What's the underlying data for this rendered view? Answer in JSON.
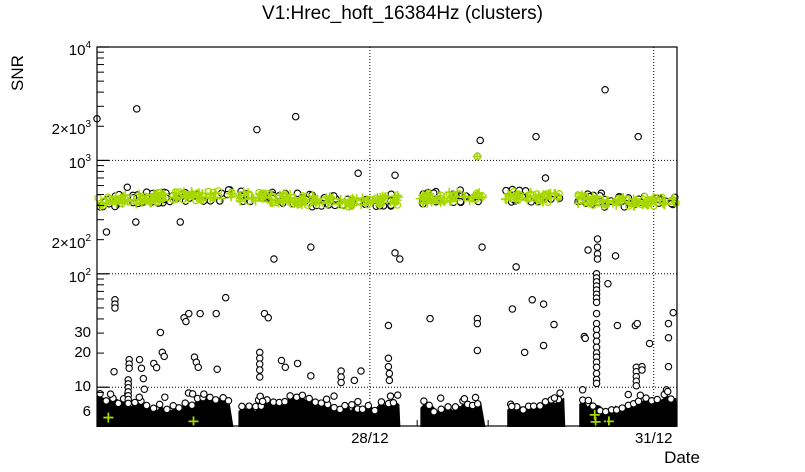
{
  "chart_data": {
    "type": "scatter",
    "title": "V1:Hrec_hoft_16384Hz (clusters)",
    "xlabel": "Date",
    "ylabel": "SNR",
    "y_scale": "log",
    "y_range": [
      4.55,
      10000
    ],
    "x_range_days": [
      0,
      6.13
    ],
    "grid": "dotted-at-decades-and-date-ticks",
    "legend": "none",
    "x_ticks": [
      {
        "day": 2.884,
        "label": "28/12"
      },
      {
        "day": 5.884,
        "label": "31/12"
      }
    ],
    "x_day_tick_step": 1,
    "x_subtick_step": 0.25,
    "y_tick_labels": [
      {
        "v": 10000,
        "mant": "10",
        "exp": "4"
      },
      {
        "v": 2000,
        "mant": "2×10",
        "exp": "3"
      },
      {
        "v": 1000,
        "mant": "10",
        "exp": "3"
      },
      {
        "v": 200,
        "mant": "2×10",
        "exp": "2"
      },
      {
        "v": 100,
        "mant": "10",
        "exp": "2"
      },
      {
        "v": 30,
        "mant": "30",
        "exp": ""
      },
      {
        "v": 20,
        "mant": "20",
        "exp": ""
      },
      {
        "v": 10,
        "mant": "10",
        "exp": ""
      },
      {
        "v": 6,
        "mant": "6",
        "exp": ""
      }
    ],
    "y_major_grid_values": [
      10,
      100,
      1000
    ],
    "colors": {
      "marker": "#000000",
      "cluster_green": "#a6d800",
      "background": "#ffffff",
      "frame": "#000000"
    },
    "cluster_band": {
      "snr_center": 460,
      "snr_low": 400,
      "snr_high": 530,
      "segments_days": [
        [
          0,
          1.436
        ],
        [
          1.5,
          3.19
        ],
        [
          3.412,
          4.099
        ],
        [
          4.31,
          4.891
        ],
        [
          5.081,
          6.13
        ]
      ]
    },
    "bottom_band": {
      "snr_low": 4.6,
      "snr_typical_top": 9.5,
      "segments_days": [
        [
          0,
          1.436
        ],
        [
          1.5,
          3.201
        ],
        [
          3.423,
          4.099
        ],
        [
          4.341,
          4.944
        ],
        [
          5.102,
          6.13
        ]
      ]
    },
    "points_black": [
      [
        0.42,
        2850
      ],
      [
        0.0,
        2330
      ],
      [
        1.69,
        1870
      ],
      [
        2.1,
        2430
      ],
      [
        2.76,
        770
      ],
      [
        5.37,
        4200
      ],
      [
        4.05,
        1500
      ],
      [
        4.64,
        1620
      ],
      [
        5.72,
        1620
      ],
      [
        3.15,
        740
      ],
      [
        4.74,
        700
      ],
      [
        0.32,
        580
      ],
      [
        0.89,
        503
      ],
      [
        0.41,
        286
      ],
      [
        0.88,
        286
      ],
      [
        0.1,
        234
      ],
      [
        1.87,
        135
      ],
      [
        2.26,
        172
      ],
      [
        4.07,
        172
      ],
      [
        4.43,
        115
      ],
      [
        5.19,
        162
      ],
      [
        5.48,
        144
      ],
      [
        3.15,
        153
      ],
      [
        3.2,
        135
      ],
      [
        5.29,
        203
      ],
      [
        5.29,
        172
      ],
      [
        5.29,
        150
      ],
      [
        5.29,
        135
      ],
      [
        5.33,
        513
      ],
      [
        0.19,
        59
      ],
      [
        0.19,
        54
      ],
      [
        0.19,
        50
      ],
      [
        0.18,
        13.7
      ],
      [
        0.34,
        17.5
      ],
      [
        0.34,
        16
      ],
      [
        0.34,
        14.7
      ],
      [
        0.33,
        11.6
      ],
      [
        0.33,
        10.7
      ],
      [
        0.33,
        9.9
      ],
      [
        0.33,
        9.1
      ],
      [
        0.33,
        8.4
      ],
      [
        0.33,
        7.8
      ],
      [
        0.33,
        7.2
      ],
      [
        0.45,
        17.5
      ],
      [
        0.47,
        14.7
      ],
      [
        0.49,
        11.9
      ],
      [
        0.5,
        9.6
      ],
      [
        0.6,
        16.2
      ],
      [
        0.63,
        14.9
      ],
      [
        0.67,
        30.4
      ],
      [
        0.69,
        20.3
      ],
      [
        0.71,
        18.7
      ],
      [
        0.92,
        41
      ],
      [
        0.97,
        44.6
      ],
      [
        0.94,
        38
      ],
      [
        1.03,
        18.4
      ],
      [
        1.05,
        16.6
      ],
      [
        1.07,
        15
      ],
      [
        1.09,
        44.6
      ],
      [
        1.26,
        44.6
      ],
      [
        1.27,
        14.4
      ],
      [
        1.36,
        61.6
      ],
      [
        1.72,
        20.3
      ],
      [
        1.72,
        18
      ],
      [
        1.72,
        16
      ],
      [
        1.72,
        14.2
      ],
      [
        1.72,
        12.3
      ],
      [
        1.77,
        44.6
      ],
      [
        1.81,
        41
      ],
      [
        1.95,
        17.2
      ],
      [
        1.99,
        15
      ],
      [
        2.12,
        16.2
      ],
      [
        2.26,
        12.6
      ],
      [
        2.58,
        13.9
      ],
      [
        2.58,
        12.3
      ],
      [
        2.58,
        11
      ],
      [
        2.72,
        11.5
      ],
      [
        2.79,
        13.9
      ],
      [
        3.08,
        35
      ],
      [
        3.08,
        18
      ],
      [
        3.08,
        15.2
      ],
      [
        3.09,
        13.2
      ],
      [
        3.09,
        11.5
      ],
      [
        3.52,
        40.3
      ],
      [
        4.02,
        40.3
      ],
      [
        4.02,
        36.4
      ],
      [
        4.02,
        21.1
      ],
      [
        4.39,
        49
      ],
      [
        4.52,
        20.3
      ],
      [
        4.6,
        59
      ],
      [
        4.72,
        54
      ],
      [
        4.72,
        23.3
      ],
      [
        4.83,
        35.7
      ],
      [
        5.15,
        28
      ],
      [
        5.16,
        27
      ],
      [
        5.28,
        100
      ],
      [
        5.28,
        92
      ],
      [
        5.28,
        85
      ],
      [
        5.28,
        78
      ],
      [
        5.28,
        72
      ],
      [
        5.28,
        66
      ],
      [
        5.28,
        61
      ],
      [
        5.28,
        56
      ],
      [
        5.28,
        44.6
      ],
      [
        5.28,
        36.4
      ],
      [
        5.28,
        32.3
      ],
      [
        5.28,
        28.6
      ],
      [
        5.28,
        25.4
      ],
      [
        5.28,
        22.5
      ],
      [
        5.28,
        20
      ],
      [
        5.28,
        18.4
      ],
      [
        5.28,
        16.6
      ],
      [
        5.28,
        15
      ],
      [
        5.28,
        13.2
      ],
      [
        5.28,
        11.7
      ],
      [
        5.28,
        10.8
      ],
      [
        5.4,
        81.8
      ],
      [
        5.5,
        35
      ],
      [
        5.69,
        35
      ],
      [
        5.71,
        36.4
      ],
      [
        5.7,
        15
      ],
      [
        5.7,
        13.7
      ],
      [
        5.7,
        12.4
      ],
      [
        5.7,
        11.3
      ],
      [
        5.7,
        10.3
      ],
      [
        5.76,
        15.2
      ],
      [
        5.76,
        14.2
      ],
      [
        5.84,
        24.3
      ],
      [
        6.04,
        36.4
      ],
      [
        6.04,
        27.3
      ],
      [
        6.04,
        15.2
      ],
      [
        6.09,
        45.5
      ]
    ],
    "points_green_circle_plus": [
      [
        4.02,
        1085
      ]
    ],
    "points_green_cross": [
      [
        0.12,
        5.4
      ],
      [
        1.02,
        5.0
      ],
      [
        5.26,
        5.7
      ],
      [
        5.27,
        4.95
      ],
      [
        5.41,
        5.0
      ]
    ]
  }
}
